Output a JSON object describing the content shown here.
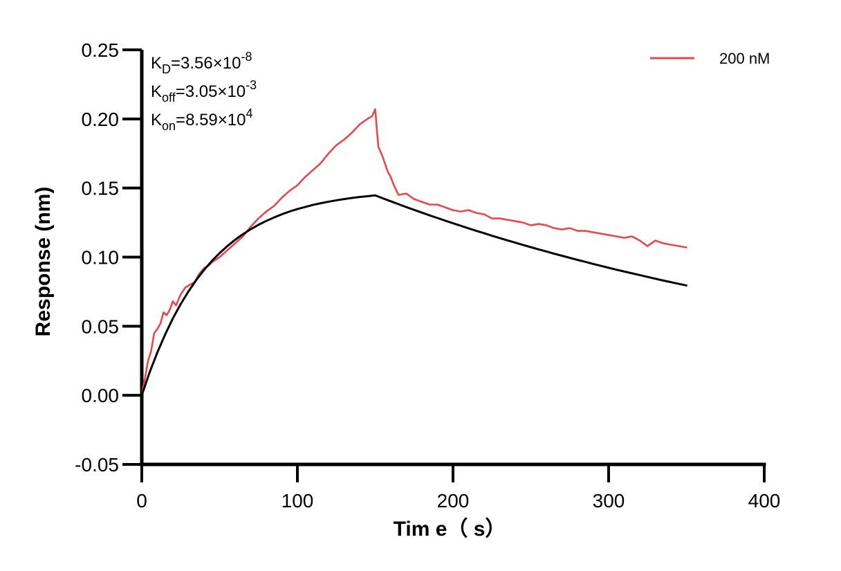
{
  "chart_data": {
    "type": "line",
    "xlabel": "Tim e（ s）",
    "ylabel": "Response (nm)",
    "xlim": [
      0,
      400
    ],
    "ylim": [
      -0.05,
      0.25
    ],
    "x_ticks": [
      0,
      100,
      200,
      300,
      400
    ],
    "x_tick_labels": [
      "0",
      "100",
      "200",
      "300",
      "400"
    ],
    "y_ticks": [
      -0.05,
      0,
      0.05,
      0.1,
      0.15,
      0.2,
      0.25
    ],
    "y_tick_labels": [
      "-0.05",
      "0.00",
      "0.05",
      "0.10",
      "0.15",
      "0.20",
      "0.25"
    ],
    "grid": false,
    "legend_position": "top-right",
    "annotations": [
      {
        "base": "K",
        "sub": "D",
        "mid": "=3.56×10",
        "sup": "-8"
      },
      {
        "base": "K",
        "sub": "off",
        "mid": "=3.05×10",
        "sup": "-3"
      },
      {
        "base": "K",
        "sub": "on",
        "mid": "=8.59×10",
        "sup": "4"
      }
    ],
    "series": [
      {
        "name": "200 nM",
        "color": "#e8474b",
        "x": [
          0,
          2,
          4,
          6,
          8,
          10,
          12,
          14,
          16,
          18,
          20,
          22,
          25,
          28,
          31,
          34,
          37,
          40,
          43,
          46,
          50,
          55,
          60,
          65,
          70,
          75,
          80,
          85,
          90,
          95,
          100,
          105,
          110,
          115,
          120,
          125,
          130,
          135,
          140,
          145,
          148,
          150,
          152,
          155,
          158,
          160,
          162,
          165,
          170,
          175,
          180,
          185,
          190,
          195,
          200,
          205,
          210,
          215,
          220,
          225,
          230,
          235,
          240,
          245,
          250,
          255,
          260,
          265,
          270,
          275,
          280,
          285,
          290,
          295,
          300,
          305,
          310,
          315,
          320,
          325,
          330,
          335,
          340,
          345,
          350
        ],
        "y": [
          0.0,
          0.012,
          0.025,
          0.032,
          0.045,
          0.048,
          0.052,
          0.06,
          0.058,
          0.062,
          0.068,
          0.065,
          0.073,
          0.078,
          0.08,
          0.082,
          0.088,
          0.092,
          0.094,
          0.097,
          0.1,
          0.105,
          0.11,
          0.115,
          0.122,
          0.128,
          0.133,
          0.137,
          0.143,
          0.148,
          0.152,
          0.158,
          0.163,
          0.168,
          0.175,
          0.181,
          0.185,
          0.19,
          0.196,
          0.2,
          0.202,
          0.207,
          0.18,
          0.172,
          0.162,
          0.158,
          0.152,
          0.145,
          0.146,
          0.142,
          0.14,
          0.138,
          0.138,
          0.136,
          0.134,
          0.133,
          0.134,
          0.132,
          0.131,
          0.128,
          0.128,
          0.127,
          0.126,
          0.125,
          0.123,
          0.124,
          0.123,
          0.121,
          0.12,
          0.121,
          0.119,
          0.119,
          0.118,
          0.117,
          0.116,
          0.115,
          0.114,
          0.115,
          0.112,
          0.108,
          0.112,
          0.11,
          0.109,
          0.108,
          0.107
        ]
      },
      {
        "name": "",
        "color": "#000000",
        "x": [
          0,
          5,
          10,
          15,
          20,
          25,
          30,
          35,
          40,
          45,
          50,
          55,
          60,
          65,
          70,
          75,
          80,
          85,
          90,
          95,
          100,
          105,
          110,
          115,
          120,
          125,
          130,
          135,
          140,
          145,
          150,
          155,
          160,
          165,
          170,
          175,
          180,
          185,
          190,
          195,
          200,
          205,
          210,
          215,
          220,
          225,
          230,
          235,
          240,
          245,
          250,
          255,
          260,
          265,
          270,
          275,
          280,
          285,
          290,
          295,
          300,
          305,
          310,
          315,
          320,
          325,
          330,
          335,
          340,
          345,
          350
        ],
        "y": [
          0.0,
          0.0165,
          0.031,
          0.044,
          0.0557,
          0.066,
          0.0752,
          0.0834,
          0.0907,
          0.0972,
          0.1029,
          0.108,
          0.1126,
          0.1166,
          0.1202,
          0.1234,
          0.1262,
          0.1287,
          0.131,
          0.133,
          0.1348,
          0.1363,
          0.1378,
          0.139,
          0.1401,
          0.1411,
          0.142,
          0.1428,
          0.1435,
          0.1441,
          0.1447,
          0.1425,
          0.1404,
          0.1383,
          0.1362,
          0.1342,
          0.1322,
          0.1302,
          0.1283,
          0.1264,
          0.1245,
          0.1227,
          0.1208,
          0.119,
          0.1173,
          0.1155,
          0.1138,
          0.1121,
          0.1105,
          0.1088,
          0.1072,
          0.1056,
          0.1041,
          0.1025,
          0.101,
          0.0995,
          0.098,
          0.0966,
          0.0951,
          0.0937,
          0.0923,
          0.0909,
          0.0896,
          0.0883,
          0.087,
          0.0857,
          0.0844,
          0.0831,
          0.0819,
          0.0807,
          0.0795
        ]
      }
    ]
  }
}
